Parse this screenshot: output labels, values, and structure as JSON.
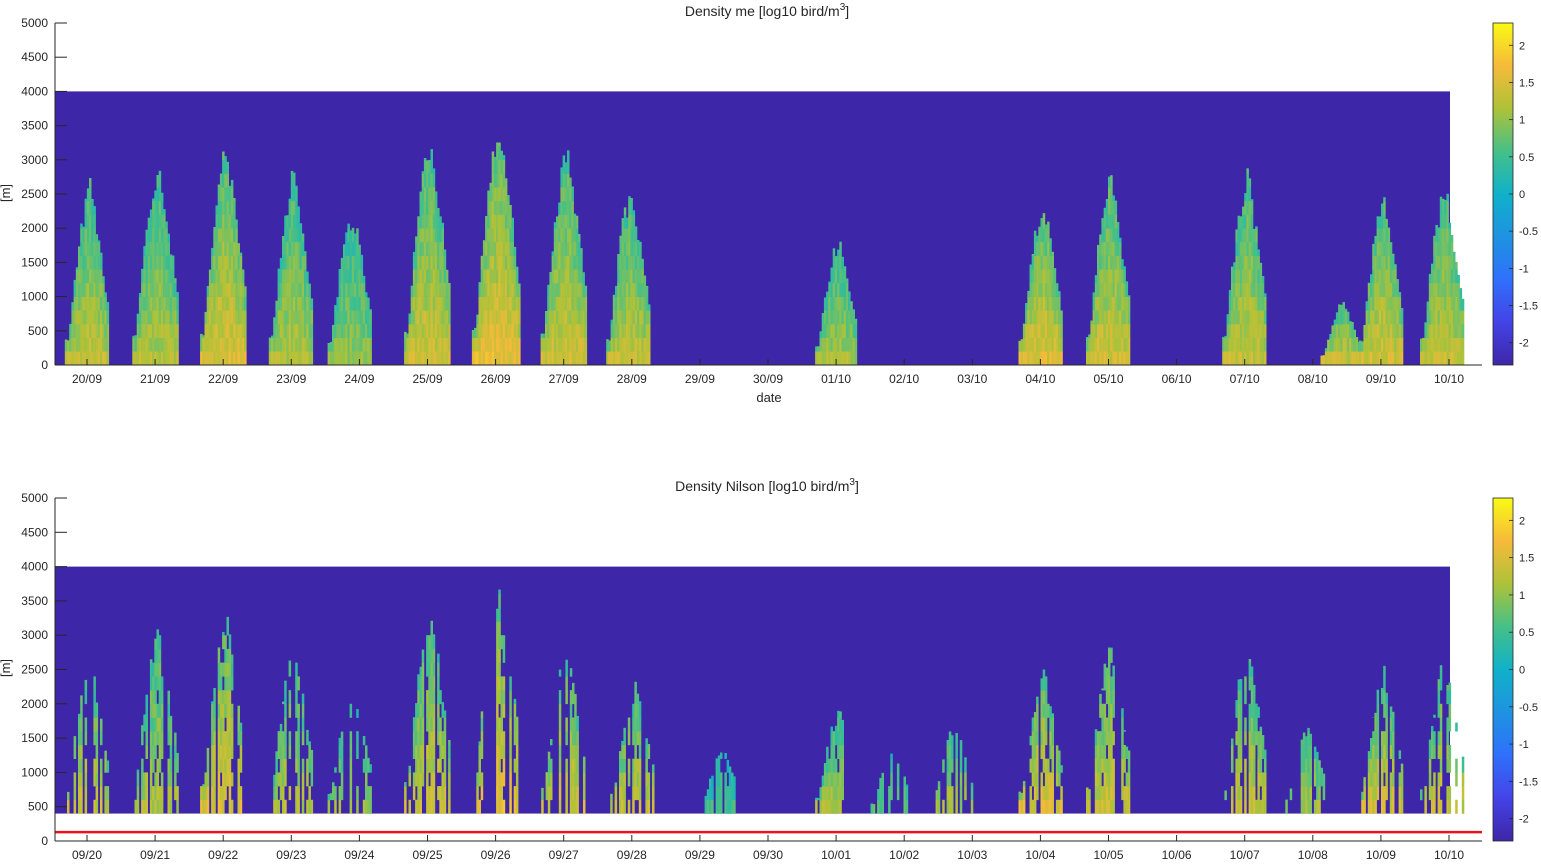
{
  "chart_data": [
    {
      "type": "heatmap",
      "title": "Density me [log10 bird/m",
      "title_superscript": "3",
      "title_suffix": "]",
      "xlabel": "date",
      "ylabel": "[m]",
      "ylim": [
        0,
        5000
      ],
      "yticks": [
        "0",
        "500",
        "1000",
        "1500",
        "2000",
        "2500",
        "3000",
        "3500",
        "4000",
        "4500",
        "5000"
      ],
      "xticks": [
        "20/09",
        "21/09",
        "22/09",
        "23/09",
        "24/09",
        "25/09",
        "26/09",
        "27/09",
        "28/09",
        "29/09",
        "30/09",
        "01/10",
        "02/10",
        "03/10",
        "04/10",
        "05/10",
        "06/10",
        "07/10",
        "08/10",
        "09/10",
        "10/10"
      ],
      "data_top_m": 4000,
      "data_bottom_m": 0,
      "colormap": "parula",
      "background_color": "#3e26a8",
      "clim": [
        -2.3,
        2.3
      ],
      "colorbar_ticks": [
        "2",
        "1.5",
        "1",
        "0.5",
        "0",
        "-0.5",
        "-1",
        "-1.5",
        "-2"
      ],
      "colorbar_values": [
        2,
        1.5,
        1,
        0.5,
        0,
        -0.5,
        -1,
        -1.5,
        -2
      ],
      "nights": [
        {
          "center": 0.0,
          "top": 2800,
          "peak": 1.2
        },
        {
          "center": 1.0,
          "top": 3200,
          "peak": 1.1
        },
        {
          "center": 2.0,
          "top": 3400,
          "peak": 1.4
        },
        {
          "center": 3.0,
          "top": 3000,
          "peak": 1.1
        },
        {
          "center": 3.85,
          "top": 2400,
          "peak": 0.9
        },
        {
          "center": 5.0,
          "top": 3600,
          "peak": 1.3
        },
        {
          "center": 6.0,
          "top": 3800,
          "peak": 1.5
        },
        {
          "center": 7.0,
          "top": 3400,
          "peak": 1.3
        },
        {
          "center": 7.95,
          "top": 2800,
          "peak": 1.2
        },
        {
          "center": 11.0,
          "top": 2000,
          "peak": 1.0
        },
        {
          "center": 14.0,
          "top": 2600,
          "peak": 1.4
        },
        {
          "center": 15.0,
          "top": 3000,
          "peak": 1.3
        },
        {
          "center": 17.0,
          "top": 3000,
          "peak": 1.2
        },
        {
          "center": 18.4,
          "top": 1000,
          "peak": 1.2
        },
        {
          "center": 19.0,
          "top": 2600,
          "peak": 1.3
        },
        {
          "center": 19.9,
          "top": 2800,
          "peak": 1.2
        }
      ],
      "sparse": false
    },
    {
      "type": "heatmap",
      "title": "Density Nilson [log10 bird/m",
      "title_superscript": "3",
      "title_suffix": "]",
      "xlabel": "",
      "ylabel": "[m]",
      "ylim": [
        0,
        5000
      ],
      "yticks": [
        "0",
        "500",
        "1000",
        "1500",
        "2000",
        "2500",
        "3000",
        "3500",
        "4000",
        "4500",
        "5000"
      ],
      "xticks": [
        "09/20",
        "09/21",
        "09/22",
        "09/23",
        "09/24",
        "09/25",
        "09/26",
        "09/27",
        "09/28",
        "09/29",
        "09/30",
        "10/01",
        "10/02",
        "10/03",
        "10/04",
        "10/05",
        "10/06",
        "10/07",
        "10/08",
        "10/09",
        "10/10"
      ],
      "data_top_m": 4000,
      "data_bottom_m": 400,
      "colormap": "parula",
      "background_color": "#3e26a8",
      "clim": [
        -2.3,
        2.3
      ],
      "colorbar_ticks": [
        "2",
        "1.5",
        "1",
        "0.5",
        "0",
        "-0.5",
        "-1",
        "-1.5",
        "-2"
      ],
      "colorbar_values": [
        2,
        1.5,
        1,
        0.5,
        0,
        -0.5,
        -1,
        -1.5,
        -2
      ],
      "reference_line_m": 130,
      "reference_line_color": "#e8141e",
      "nights": [
        {
          "center": 0.0,
          "top": 2800,
          "peak": 1.2
        },
        {
          "center": 1.0,
          "top": 3200,
          "peak": 1.1
        },
        {
          "center": 2.0,
          "top": 3400,
          "peak": 1.4
        },
        {
          "center": 3.0,
          "top": 3000,
          "peak": 1.1
        },
        {
          "center": 3.85,
          "top": 2400,
          "peak": 0.9
        },
        {
          "center": 5.0,
          "top": 3600,
          "peak": 1.3
        },
        {
          "center": 6.0,
          "top": 3800,
          "peak": 1.5
        },
        {
          "center": 7.0,
          "top": 3000,
          "peak": 1.3
        },
        {
          "center": 8.0,
          "top": 2400,
          "peak": 1.2
        },
        {
          "center": 9.3,
          "top": 1400,
          "peak": 0.4
        },
        {
          "center": 11.0,
          "top": 2000,
          "peak": 1.0
        },
        {
          "center": 11.8,
          "top": 1400,
          "peak": 0.6
        },
        {
          "center": 12.7,
          "top": 1800,
          "peak": 1.0
        },
        {
          "center": 14.0,
          "top": 2600,
          "peak": 1.4
        },
        {
          "center": 15.0,
          "top": 3000,
          "peak": 1.3
        },
        {
          "center": 17.0,
          "top": 3000,
          "peak": 1.2
        },
        {
          "center": 17.9,
          "top": 1800,
          "peak": 1.0
        },
        {
          "center": 19.0,
          "top": 2600,
          "peak": 1.3
        },
        {
          "center": 19.9,
          "top": 2800,
          "peak": 1.2
        }
      ],
      "sparse": true
    }
  ]
}
